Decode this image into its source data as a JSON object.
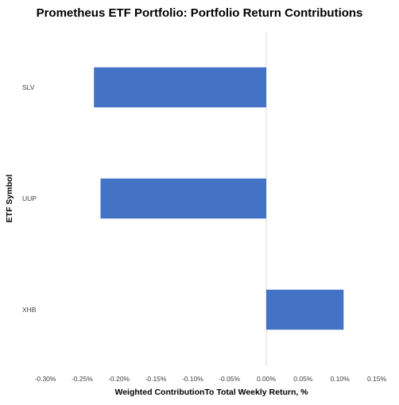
{
  "chart_data": {
    "type": "bar",
    "orientation": "horizontal",
    "title": "Prometheus ETF Portfolio: Portfolio Return Contributions",
    "xlabel": "Weighted ContributionTo Total Weekly Return, %",
    "ylabel": "ETF Symbol",
    "categories": [
      "SLV",
      "UUP",
      "XHB"
    ],
    "values": [
      -0.234,
      -0.225,
      0.105
    ],
    "xlim": [
      -0.3,
      0.15
    ],
    "xticks": [
      "-0.30%",
      "-0.25%",
      "-0.20%",
      "-0.15%",
      "-0.10%",
      "-0.05%",
      "0.00%",
      "0.05%",
      "0.10%",
      "0.15%"
    ],
    "bar_color": "#4472C4",
    "grid": false
  }
}
